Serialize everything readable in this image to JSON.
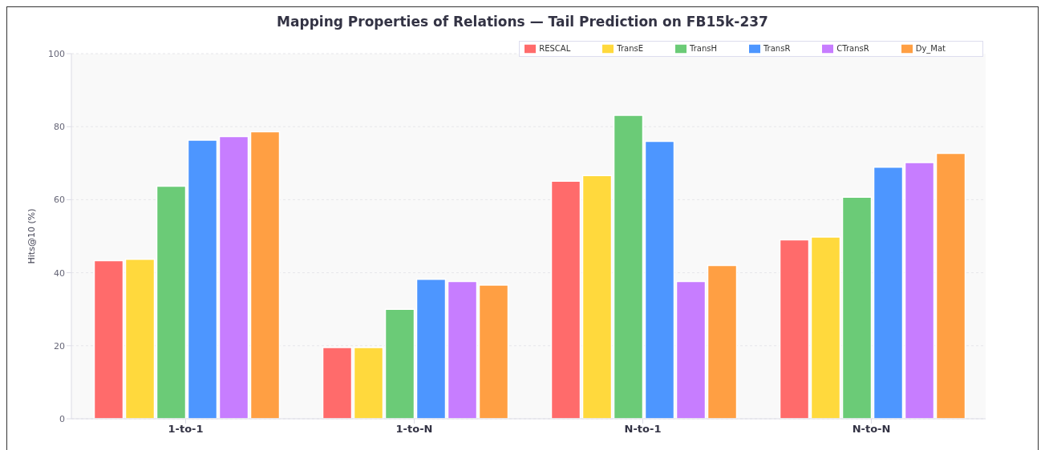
{
  "chart_data": {
    "type": "bar",
    "title": "Mapping Properties of Relations — Tail Prediction on FB15k-237",
    "ylabel": "Hits@10 (%)",
    "categories": [
      "1-to-1",
      "1-to-N",
      "N-to-1",
      "N-to-N"
    ],
    "series": [
      {
        "name": "RESCAL",
        "color": "#ff6b6b",
        "values": [
          43.3,
          19.5,
          65.1,
          49.0
        ]
      },
      {
        "name": "TransE",
        "color": "#ffd93d",
        "values": [
          43.7,
          19.5,
          66.6,
          49.8
        ]
      },
      {
        "name": "TransH",
        "color": "#6bcb77",
        "values": [
          63.7,
          30.0,
          83.1,
          60.7
        ]
      },
      {
        "name": "TransR",
        "color": "#4d96ff",
        "values": [
          76.3,
          38.2,
          76.0,
          68.9
        ]
      },
      {
        "name": "CTransR",
        "color": "#c77dff",
        "values": [
          77.3,
          37.6,
          37.6,
          70.2
        ]
      },
      {
        "name": "Dy_Mat",
        "color": "#ff9f43",
        "values": [
          78.6,
          36.6,
          42.0,
          72.7
        ]
      }
    ],
    "ylim": [
      0,
      100
    ],
    "yticks": [
      0,
      20,
      40,
      60,
      80,
      100
    ],
    "grid": "y",
    "legend": "top right"
  }
}
